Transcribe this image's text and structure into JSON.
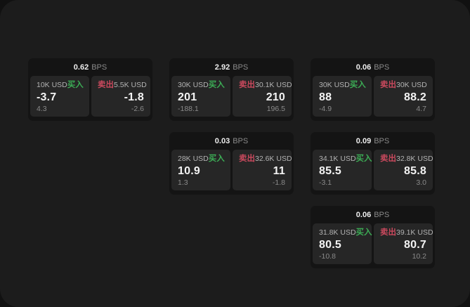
{
  "theme": {
    "bg_outer": "#111111",
    "bg_panel": "#1c1c1c",
    "bg_card": "#141414",
    "bg_tile": "#262626",
    "buy_color": "#3cac55",
    "sell_color": "#c9495d"
  },
  "labels": {
    "buy": "买入",
    "sell": "卖出",
    "bps": "BPS"
  },
  "cards": [
    {
      "bps": "0.62",
      "buy": {
        "amount": "10K USD",
        "value": "-3.7",
        "delta": "4.3"
      },
      "sell": {
        "amount": "5.5K USD",
        "value": "-1.8",
        "delta": "-2.6"
      }
    },
    {
      "bps": "2.92",
      "buy": {
        "amount": "30K USD",
        "value": "201",
        "delta": "-188.1"
      },
      "sell": {
        "amount": "30.1K USD",
        "value": "210",
        "delta": "196.5"
      }
    },
    {
      "bps": "0.06",
      "buy": {
        "amount": "30K USD",
        "value": "88",
        "delta": "-4.9"
      },
      "sell": {
        "amount": "30K USD",
        "value": "88.2",
        "delta": "4.7"
      }
    },
    {
      "bps": "0.03",
      "buy": {
        "amount": "28K USD",
        "value": "10.9",
        "delta": "1.3"
      },
      "sell": {
        "amount": "32.6K USD",
        "value": "11",
        "delta": "-1.8"
      }
    },
    {
      "bps": "0.09",
      "buy": {
        "amount": "34.1K USD",
        "value": "85.5",
        "delta": "-3.1"
      },
      "sell": {
        "amount": "32.8K USD",
        "value": "85.8",
        "delta": "3.0"
      }
    },
    {
      "bps": "0.06",
      "buy": {
        "amount": "31.8K USD",
        "value": "80.5",
        "delta": "-10.8"
      },
      "sell": {
        "amount": "39.1K USD",
        "value": "80.7",
        "delta": "10.2"
      }
    }
  ]
}
